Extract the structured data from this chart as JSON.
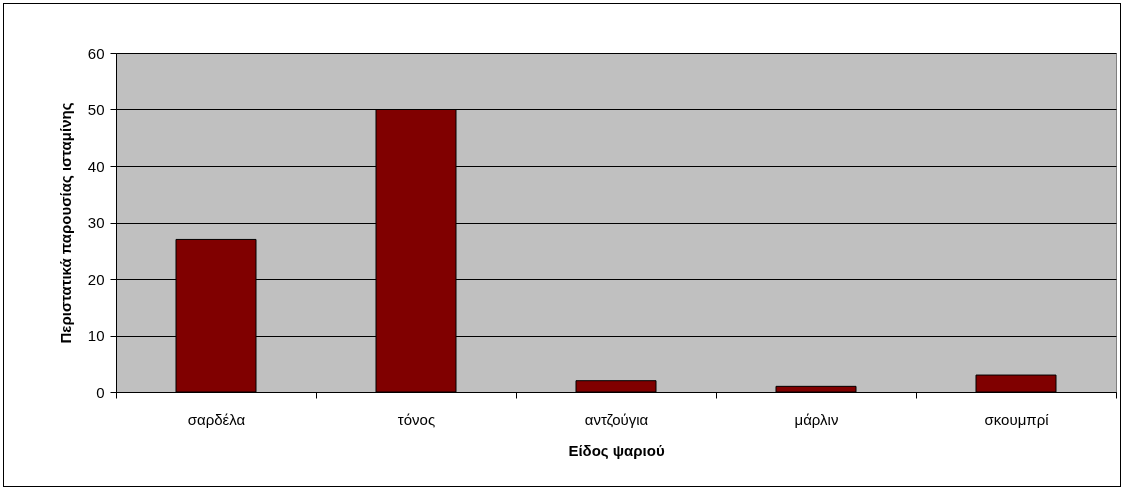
{
  "chart_data": {
    "type": "bar",
    "xlabel": "Είδος ψαριού",
    "ylabel": "Περιστατικά παρουσίας ισταμίνης",
    "categories": [
      "σαρδέλα",
      "τόνος",
      "αντζούγια",
      "μάρλιν",
      "σκουμπρί"
    ],
    "values": [
      27,
      50,
      2,
      1,
      3
    ],
    "color": "#800000",
    "ylim": [
      0,
      60
    ],
    "yticks": [
      0,
      10,
      20,
      30,
      40,
      50,
      60
    ],
    "grid": "y"
  }
}
